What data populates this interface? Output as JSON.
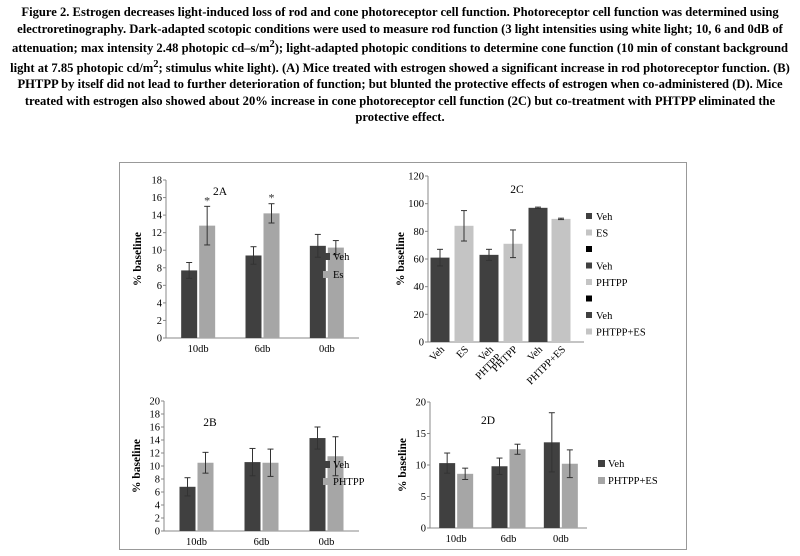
{
  "caption": {
    "line1": "Figure 2. Estrogen decreases light-induced loss of rod and cone photoreceptor cell function. Photoreceptor cell function",
    "line2": "was determined using electroretinography. Dark-adapted scotopic conditions were used to measure rod function (3 light",
    "line3_pre": "intensities using white light; 10, 6 and 0dB of attenuation; max intensity 2.48 photopic cd–s/m",
    "line3_sup": "2",
    "line3_post": "); light-adapted photopic",
    "line4_pre": "conditions to determine cone function (10 min of constant background light at 7.85 photopic cd/m",
    "line4_sup": "2",
    "line4_post": "; stimulus white light).",
    "line5": "(A) Mice treated with estrogen showed a significant increase in rod photoreceptor function. (B) PHTPP by itself did not",
    "line6": "lead to further deterioration of function; but blunted the protective effects of estrogen when co-administered (D). Mice",
    "line7": "treated with estrogen also showed about 20% increase in cone photoreceptor cell function (2C) but co-treatment with",
    "line8": "PHTPP eliminated the protective effect."
  },
  "colors": {
    "dark": "#404040",
    "light": "#a6a6a6",
    "lighter": "#c4c4c4",
    "axis": "#888888"
  },
  "chart_data": [
    {
      "id": "2A",
      "type": "bar",
      "title": "2A",
      "ylabel": "% baseline",
      "ylim": [
        0,
        18
      ],
      "yticks": [
        0,
        2,
        4,
        6,
        8,
        10,
        12,
        14,
        16,
        18
      ],
      "categories": [
        "10db",
        "6db",
        "0db"
      ],
      "series": [
        {
          "name": "Veh",
          "values": [
            7.7,
            9.4,
            10.5
          ],
          "errors": [
            0.9,
            1.0,
            1.3
          ]
        },
        {
          "name": "Es",
          "values": [
            12.8,
            14.2,
            10.3
          ],
          "errors": [
            2.2,
            1.1,
            0.8
          ]
        }
      ],
      "annotations": [
        {
          "text": "*",
          "category": 0,
          "series": 1
        },
        {
          "text": "*",
          "category": 1,
          "series": 1
        }
      ],
      "legend": "right"
    },
    {
      "id": "2B",
      "type": "bar",
      "title": "2B",
      "ylabel": "% baseline",
      "ylim": [
        0,
        20
      ],
      "yticks": [
        0,
        2,
        4,
        6,
        8,
        10,
        12,
        14,
        16,
        18,
        20
      ],
      "categories": [
        "10db",
        "6db",
        "0db"
      ],
      "series": [
        {
          "name": "Veh",
          "values": [
            6.8,
            10.6,
            14.3
          ],
          "errors": [
            1.4,
            2.1,
            1.7
          ]
        },
        {
          "name": "PHTPP",
          "values": [
            10.5,
            10.5,
            11.5
          ],
          "errors": [
            1.6,
            2.1,
            3.0
          ]
        }
      ],
      "legend": "right"
    },
    {
      "id": "2C",
      "type": "bar",
      "title": "2C",
      "ylabel": "% baseline",
      "ylim": [
        0,
        120
      ],
      "yticks": [
        0,
        20,
        40,
        60,
        80,
        100,
        120
      ],
      "categories": [
        "Veh",
        "ES",
        "Veh",
        "PHTPP",
        "Veh",
        "PHTPP+ES"
      ],
      "bar_labels": [
        "Veh",
        "ES",
        "Veh\nPHTPP",
        "PHTPP",
        "Veh",
        "PHTPP+ES"
      ],
      "values": [
        61,
        84,
        63,
        71,
        97,
        89
      ],
      "errors": [
        6,
        11,
        4,
        10,
        0.5,
        0.5
      ],
      "legend_entries": [
        {
          "name": "Veh",
          "marker": "dark"
        },
        {
          "name": "ES",
          "marker": "lighter"
        },
        {
          "name": "",
          "marker": "black"
        },
        {
          "name": "Veh",
          "marker": "dark"
        },
        {
          "name": "PHTPP",
          "marker": "lighter"
        },
        {
          "name": "",
          "marker": "black"
        },
        {
          "name": "Veh",
          "marker": "dark"
        },
        {
          "name": "PHTPP+ES",
          "marker": "lighter"
        }
      ],
      "legend": "right"
    },
    {
      "id": "2D",
      "type": "bar",
      "title": "2D",
      "ylabel": "% baseline",
      "ylim": [
        0,
        20
      ],
      "yticks": [
        0,
        5,
        10,
        15,
        20
      ],
      "categories": [
        "10db",
        "6db",
        "0db"
      ],
      "series": [
        {
          "name": "Veh",
          "values": [
            10.3,
            9.8,
            13.6
          ],
          "errors": [
            1.6,
            1.3,
            4.7
          ]
        },
        {
          "name": "PHTPP+ES",
          "values": [
            8.6,
            12.5,
            10.2
          ],
          "errors": [
            0.9,
            0.8,
            2.2
          ]
        }
      ],
      "legend": "right"
    }
  ]
}
